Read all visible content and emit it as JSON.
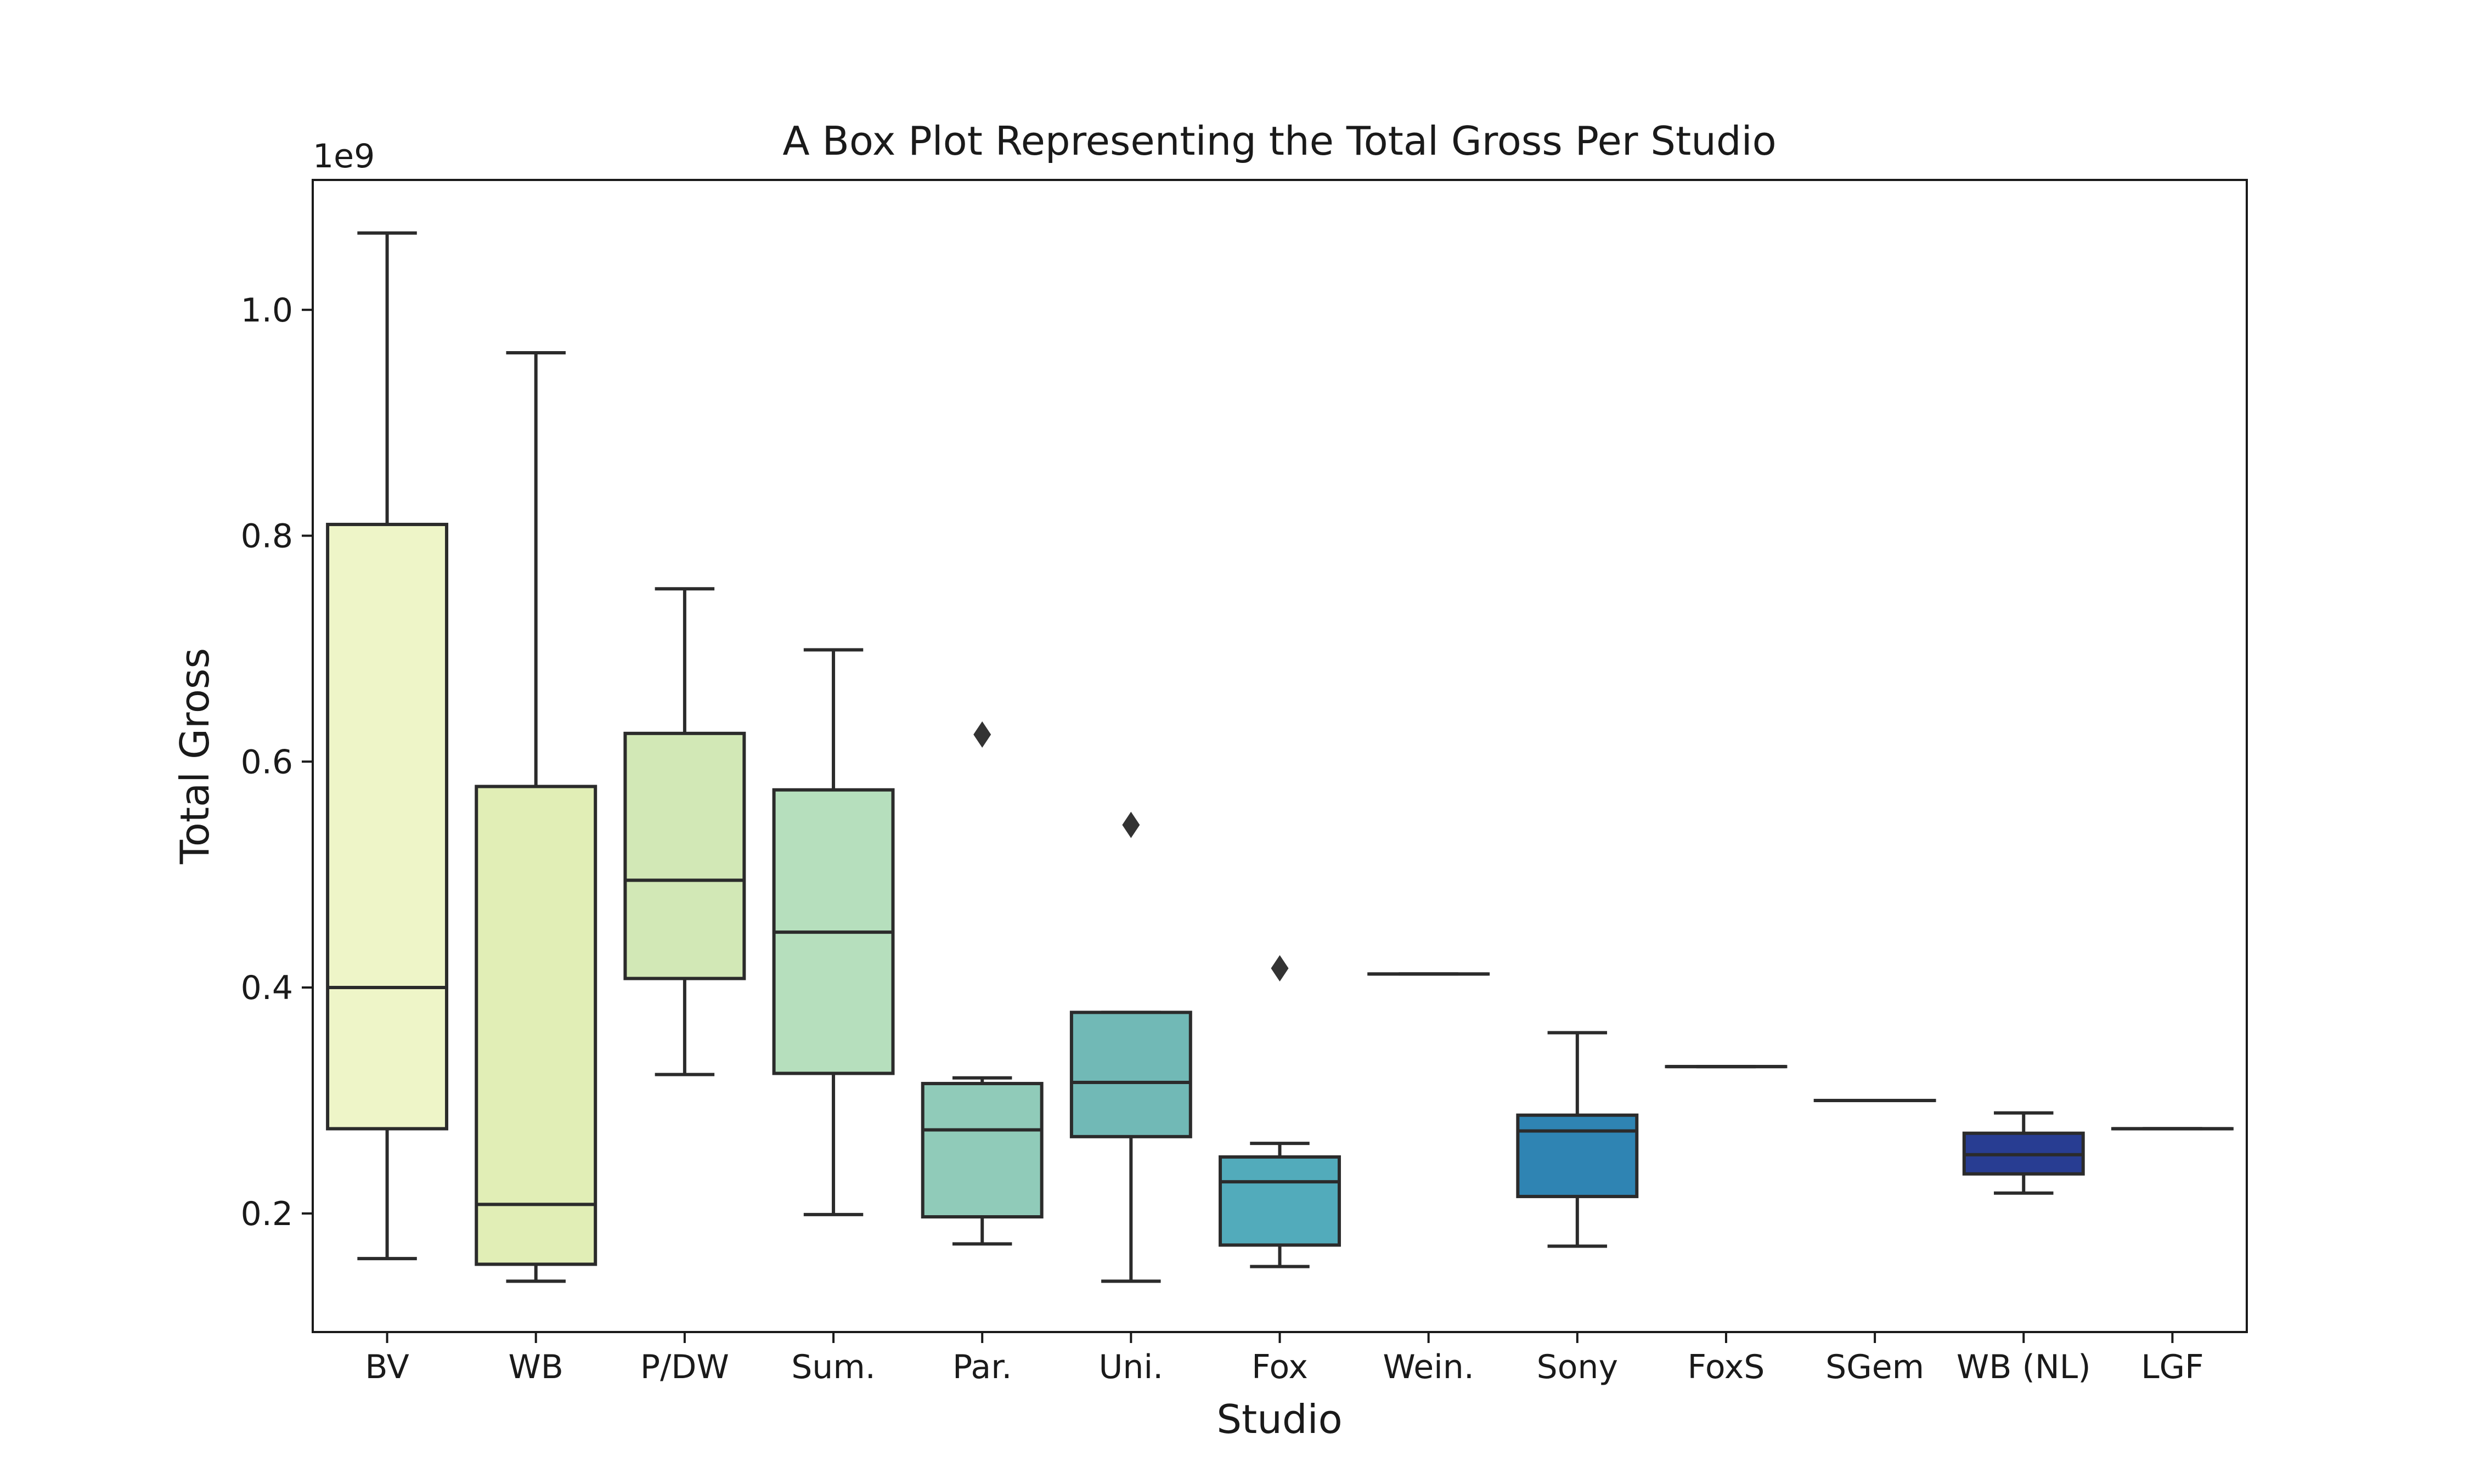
{
  "chart_data": {
    "type": "box",
    "title": "A Box Plot Representing the Total Gross Per Studio",
    "xlabel": "Studio",
    "ylabel": "Total Gross",
    "y_offset_label": "1e9",
    "ylim": [
      0.095,
      1.115
    ],
    "yticks": [
      0.2,
      0.4,
      0.6,
      0.8,
      1.0
    ],
    "ytick_labels": [
      "0.2",
      "0.4",
      "0.6",
      "0.8",
      "1.0"
    ],
    "grid": false,
    "legend": "none",
    "categories": [
      "BV",
      "WB",
      "P/DW",
      "Sum.",
      "Par.",
      "Uni.",
      "Fox",
      "Wein.",
      "Sony",
      "FoxS",
      "SGem",
      "WB (NL)",
      "LGF"
    ],
    "boxes": [
      {
        "category": "BV",
        "whisker_low": 0.16,
        "q1": 0.275,
        "median": 0.4,
        "q3": 0.81,
        "whisker_high": 1.068,
        "outliers": [],
        "color": "#eef5c8"
      },
      {
        "category": "WB",
        "whisker_low": 0.14,
        "q1": 0.155,
        "median": 0.208,
        "q3": 0.578,
        "whisker_high": 0.962,
        "outliers": [],
        "color": "#e1eeb6"
      },
      {
        "category": "P/DW",
        "whisker_low": 0.323,
        "q1": 0.408,
        "median": 0.495,
        "q3": 0.625,
        "whisker_high": 0.753,
        "outliers": [],
        "color": "#d2e8b6"
      },
      {
        "category": "Sum.",
        "whisker_low": 0.199,
        "q1": 0.324,
        "median": 0.449,
        "q3": 0.575,
        "whisker_high": 0.699,
        "outliers": [],
        "color": "#b6dfbd"
      },
      {
        "category": "Par.",
        "whisker_low": 0.173,
        "q1": 0.197,
        "median": 0.274,
        "q3": 0.315,
        "whisker_high": 0.32,
        "outliers": [
          0.624
        ],
        "color": "#90cbb9"
      },
      {
        "category": "Uni.",
        "whisker_low": 0.14,
        "q1": 0.268,
        "median": 0.316,
        "q3": 0.378,
        "whisker_high": 0.378,
        "outliers": [
          0.544
        ],
        "color": "#71b9b6"
      },
      {
        "category": "Fox",
        "whisker_low": 0.153,
        "q1": 0.172,
        "median": 0.228,
        "q3": 0.25,
        "whisker_high": 0.262,
        "outliers": [
          0.417
        ],
        "color": "#52abbb"
      },
      {
        "category": "Wein.",
        "whisker_low": 0.412,
        "q1": 0.412,
        "median": 0.412,
        "q3": 0.412,
        "whisker_high": 0.412,
        "outliers": [],
        "color": "#3f9fbd"
      },
      {
        "category": "Sony",
        "whisker_low": 0.171,
        "q1": 0.215,
        "median": 0.273,
        "q3": 0.287,
        "whisker_high": 0.36,
        "outliers": [],
        "color": "#2f84b3"
      },
      {
        "category": "FoxS",
        "whisker_low": 0.33,
        "q1": 0.33,
        "median": 0.33,
        "q3": 0.33,
        "whisker_high": 0.33,
        "outliers": [],
        "color": "#2c6faa"
      },
      {
        "category": "SGem",
        "whisker_low": 0.3,
        "q1": 0.3,
        "median": 0.3,
        "q3": 0.3,
        "whisker_high": 0.3,
        "outliers": [],
        "color": "#2c55a0"
      },
      {
        "category": "WB (NL)",
        "whisker_low": 0.218,
        "q1": 0.235,
        "median": 0.252,
        "q3": 0.271,
        "whisker_high": 0.289,
        "outliers": [],
        "color": "#283d92"
      },
      {
        "category": "LGF",
        "whisker_low": 0.275,
        "q1": 0.275,
        "median": 0.275,
        "q3": 0.275,
        "whisker_high": 0.275,
        "outliers": [],
        "color": "#24297a"
      }
    ]
  }
}
